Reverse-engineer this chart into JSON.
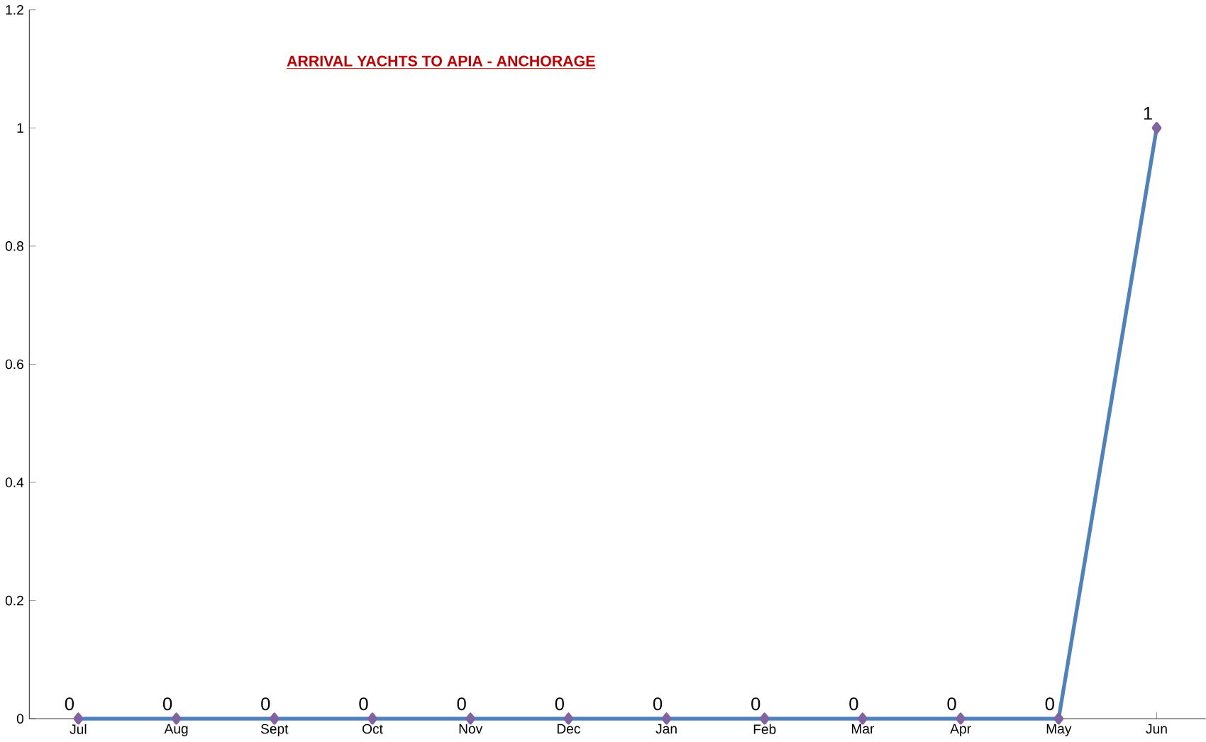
{
  "chart_data": {
    "type": "line",
    "title": "ARRIVAL YACHTS TO APIA - ANCHORAGE",
    "categories": [
      "Jul",
      "Aug",
      "Sept",
      "Oct",
      "Nov",
      "Dec",
      "Jan",
      "Feb",
      "Mar",
      "Apr",
      "May",
      "Jun"
    ],
    "series": [
      {
        "color": "#4f81bd",
        "values": [
          0,
          0,
          0,
          0,
          0,
          0,
          0,
          0,
          0,
          0,
          0,
          1
        ]
      }
    ],
    "ylim": [
      0,
      1.2
    ],
    "yticks": [
      0,
      0.2,
      0.4,
      0.6,
      0.8,
      1,
      1.2
    ],
    "marker": "diamond",
    "data_labels": true
  }
}
